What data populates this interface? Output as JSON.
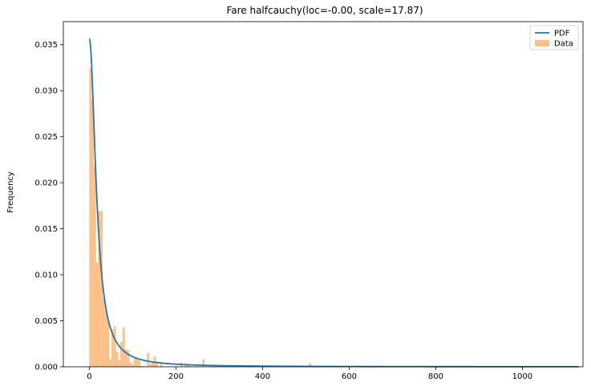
{
  "chart_data": {
    "type": "histogram",
    "title": "Fare halfcauchy(loc=-0.00, scale=17.87)",
    "xlabel": "",
    "ylabel": "Frequency",
    "xlim": [
      -60,
      1140
    ],
    "ylim": [
      0,
      0.0375
    ],
    "xticks": [
      0,
      200,
      400,
      600,
      800,
      1000
    ],
    "yticks": [
      0.0,
      0.005,
      0.01,
      0.015,
      0.02,
      0.025,
      0.03,
      0.035
    ],
    "ytick_labels": [
      "0.000",
      "0.005",
      "0.010",
      "0.015",
      "0.020",
      "0.025",
      "0.030",
      "0.035"
    ],
    "legend": {
      "position": "top-right",
      "entries": [
        {
          "label": "PDF",
          "kind": "line",
          "color": "#1f77b4"
        },
        {
          "label": "Data",
          "kind": "patch",
          "color": "#ffbf86"
        }
      ]
    },
    "series": [
      {
        "name": "Data",
        "kind": "histogram",
        "color": "#ffbf86",
        "bin_width": 5.12,
        "bars": [
          {
            "x": 0,
            "y": 0.0325
          },
          {
            "x": 5.12,
            "y": 0.0292
          },
          {
            "x": 10.24,
            "y": 0.0218
          },
          {
            "x": 15.36,
            "y": 0.0113
          },
          {
            "x": 20.48,
            "y": 0.0169
          },
          {
            "x": 25.6,
            "y": 0.0169
          },
          {
            "x": 30.72,
            "y": 0.0074
          },
          {
            "x": 35.84,
            "y": 0.0062
          },
          {
            "x": 40.96,
            "y": 0.005
          },
          {
            "x": 46.08,
            "y": 0.0008
          },
          {
            "x": 51.2,
            "y": 0.0041
          },
          {
            "x": 56.32,
            "y": 0.0044
          },
          {
            "x": 61.44,
            "y": 0.0016
          },
          {
            "x": 66.56,
            "y": 0.0007
          },
          {
            "x": 71.68,
            "y": 0.0027
          },
          {
            "x": 76.8,
            "y": 0.0043
          },
          {
            "x": 81.92,
            "y": 0.0019
          },
          {
            "x": 87.04,
            "y": 0.0018
          },
          {
            "x": 92.16,
            "y": 0.0005
          },
          {
            "x": 97.28,
            "y": 0.0003
          },
          {
            "x": 102.4,
            "y": 0.001
          },
          {
            "x": 107.52,
            "y": 0.0009
          },
          {
            "x": 112.64,
            "y": 0.0007
          },
          {
            "x": 117.76,
            "y": 0.0001
          },
          {
            "x": 122.88,
            "y": 0.0001
          },
          {
            "x": 133.12,
            "y": 0.0015
          },
          {
            "x": 138.24,
            "y": 0.0003
          },
          {
            "x": 143.36,
            "y": 0.0006
          },
          {
            "x": 148.48,
            "y": 0.0011
          },
          {
            "x": 153.6,
            "y": 0.0006
          },
          {
            "x": 163.84,
            "y": 0.0004
          },
          {
            "x": 209.92,
            "y": 0.0005
          },
          {
            "x": 220.16,
            "y": 0.0004
          },
          {
            "x": 225.28,
            "y": 0.0003
          },
          {
            "x": 261.12,
            "y": 0.0008
          },
          {
            "x": 506.88,
            "y": 0.0004
          }
        ]
      },
      {
        "name": "PDF",
        "kind": "line",
        "color": "#1f77b4",
        "distribution": "halfcauchy",
        "loc": -0.0,
        "scale": 17.87,
        "x_range": [
          0,
          1130
        ]
      }
    ]
  }
}
